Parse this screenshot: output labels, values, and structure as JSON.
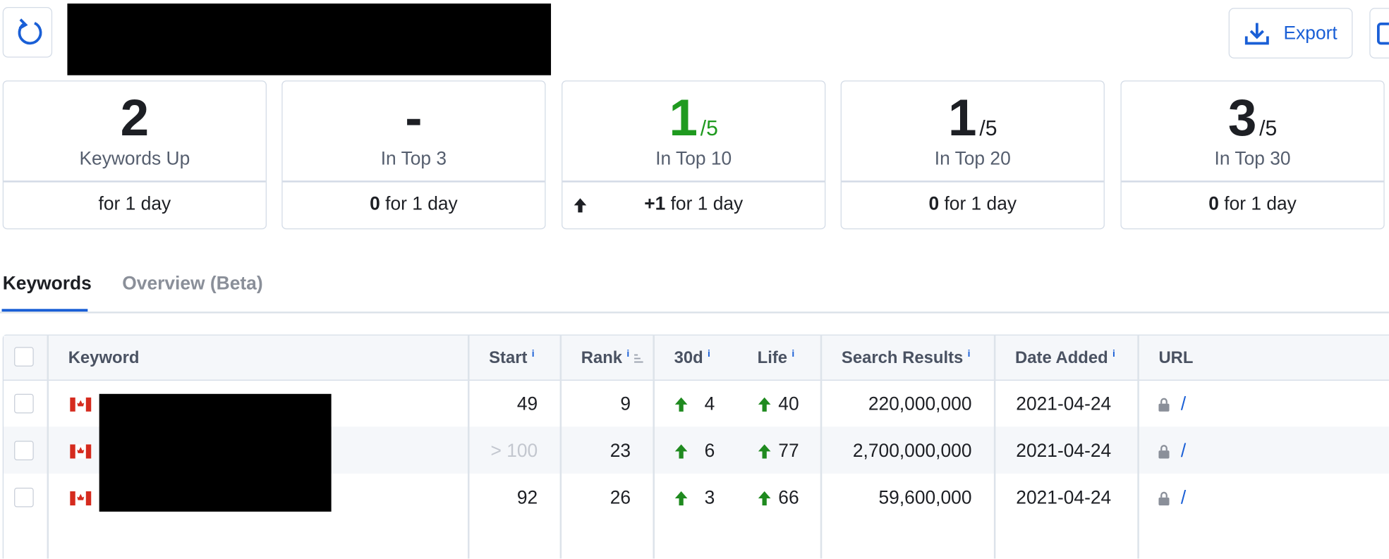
{
  "header": {
    "export_label": "Export"
  },
  "stats": [
    {
      "value": "2",
      "label": "Keywords Up",
      "footer": "for 1 day"
    },
    {
      "value": "-",
      "label": "In Top 3",
      "footer_bold": "0",
      "footer": "for 1 day"
    },
    {
      "value": "1",
      "total": "/5",
      "label": "In Top 10",
      "footer_bold": "+1",
      "footer": "for 1 day",
      "trend": "up",
      "color": "#1f9a1f"
    },
    {
      "value": "1",
      "total": "/5",
      "label": "In Top 20",
      "footer_bold": "0",
      "footer": "for 1 day"
    },
    {
      "value": "3",
      "total": "/5",
      "label": "In Top 30",
      "footer_bold": "0",
      "footer": "for 1 day"
    }
  ],
  "tabs": {
    "items": [
      "Keywords",
      "Overview (Beta)"
    ],
    "active": 0
  },
  "table": {
    "info_mark": "i",
    "columns": [
      {
        "key": "keyword",
        "label": "Keyword"
      },
      {
        "key": "start",
        "label": "Start",
        "info": true
      },
      {
        "key": "rank",
        "label": "Rank",
        "info": true,
        "sortable": true
      },
      {
        "key": "d30",
        "label": "30d",
        "info": true
      },
      {
        "key": "life",
        "label": "Life",
        "info": true
      },
      {
        "key": "search_results",
        "label": "Search Results",
        "info": true
      },
      {
        "key": "date_added",
        "label": "Date Added",
        "info": true
      },
      {
        "key": "url",
        "label": "URL"
      }
    ],
    "rows": [
      {
        "start": "49",
        "rank": "9",
        "d30": "4",
        "life": "40",
        "search_results": "220,000,000",
        "date_added": "2021-04-24",
        "url": "/"
      },
      {
        "start": "> 100",
        "start_muted": true,
        "rank": "23",
        "d30": "6",
        "life": "77",
        "search_results": "2,700,000,000",
        "date_added": "2021-04-24",
        "url": "/"
      },
      {
        "start": "92",
        "rank": "26",
        "d30": "3",
        "life": "66",
        "search_results": "59,600,000",
        "date_added": "2021-04-24",
        "url": "/"
      }
    ]
  }
}
